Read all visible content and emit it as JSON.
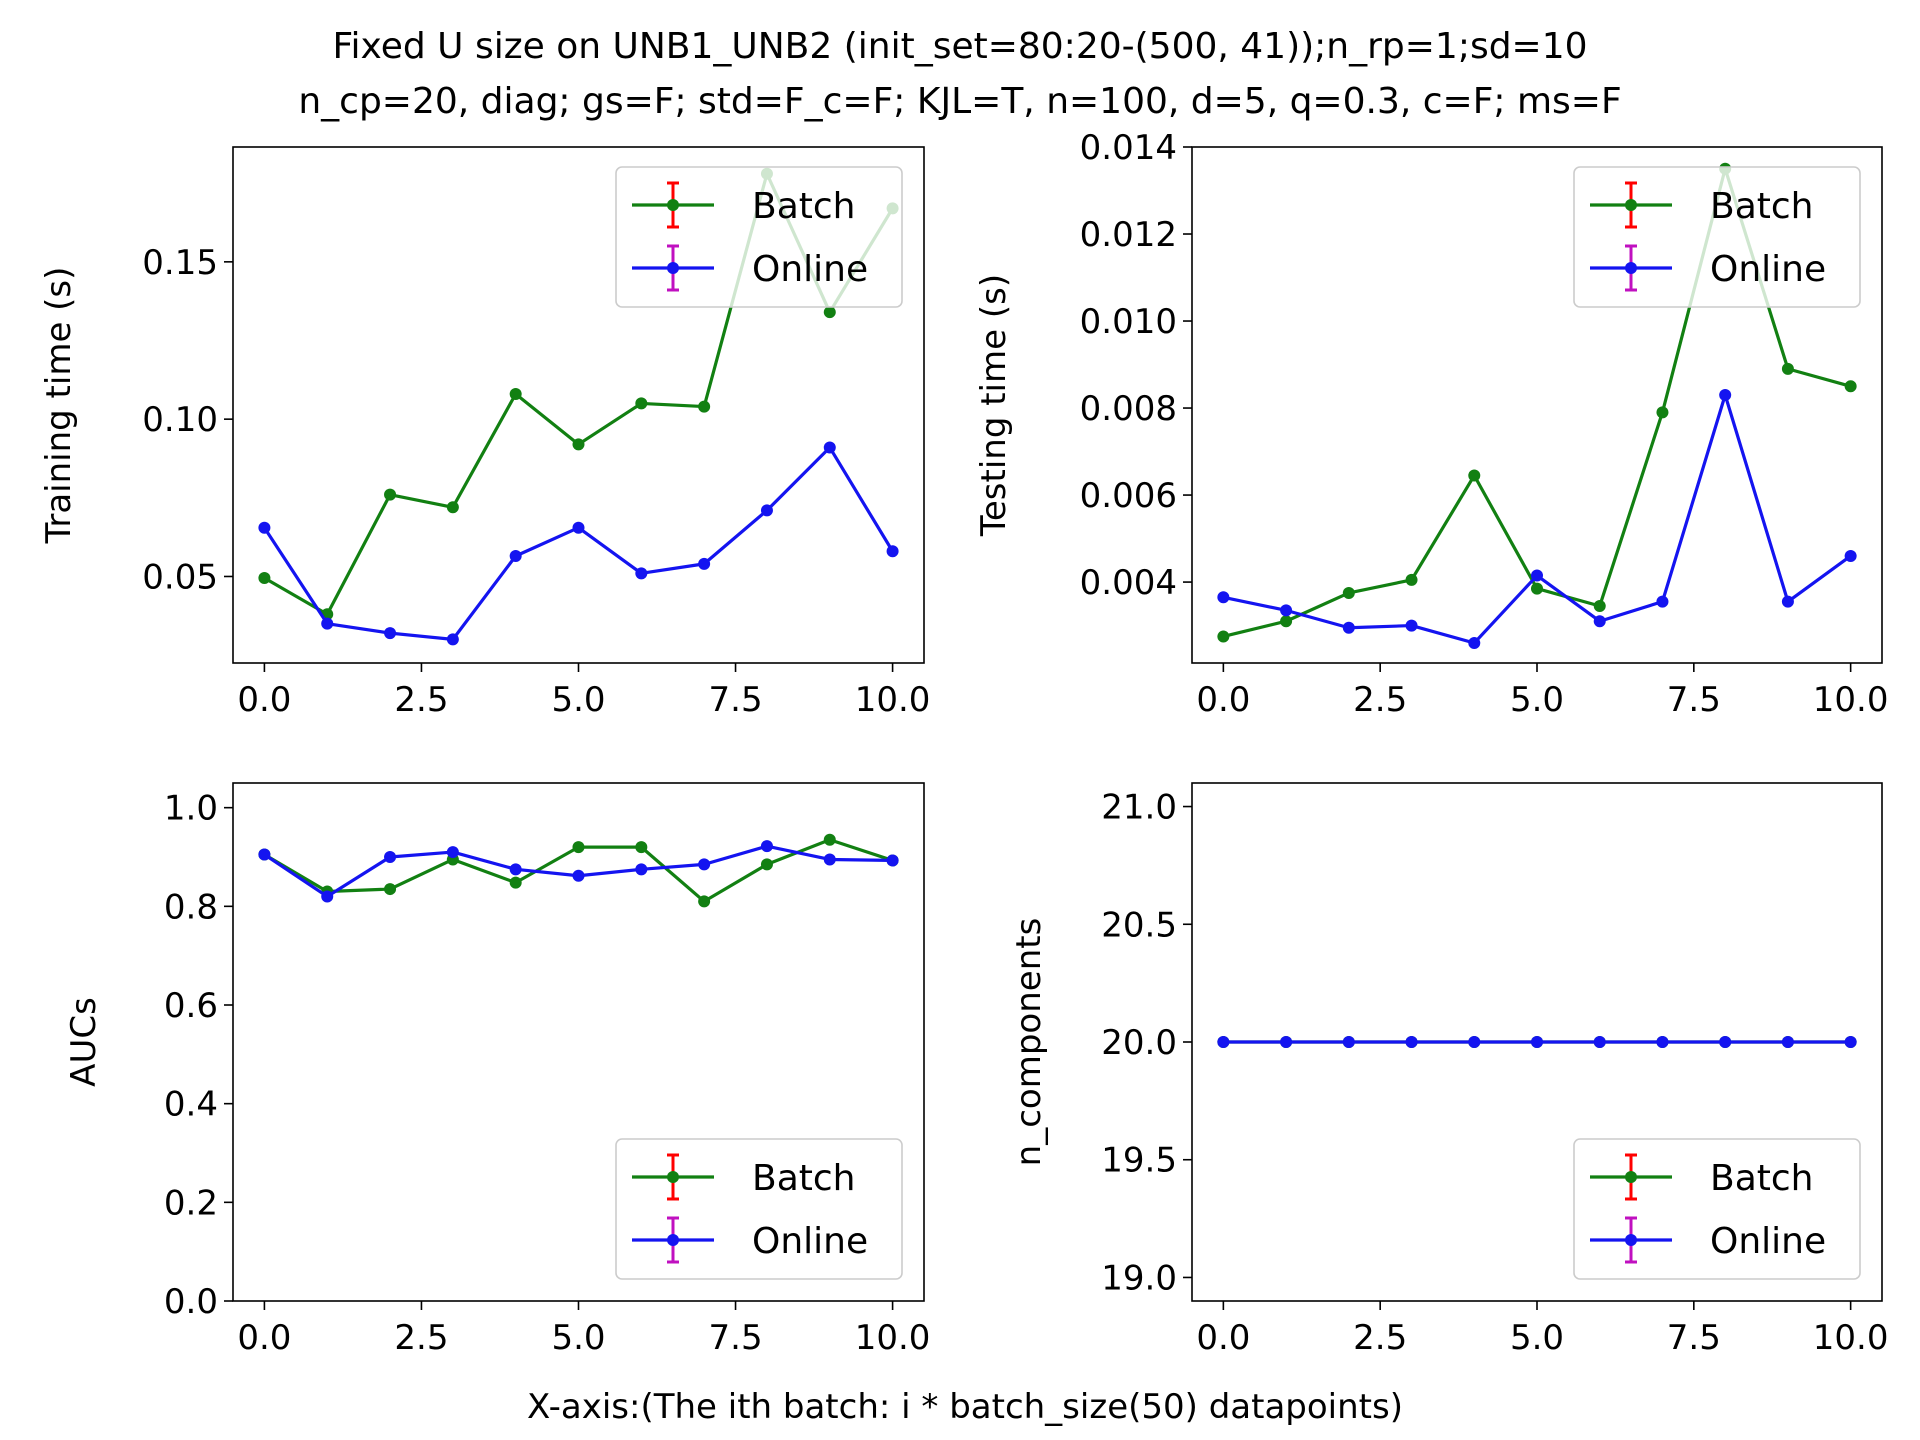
{
  "figure": {
    "title_lines": [
      "Fixed U size on UNB1_UNB2 (init_set=80:20-(500, 41));n_rp=1;sd=10",
      "n_cp=20, diag; gs=F; std=F_c=F; KJL=T, n=100, d=5, q=0.3, c=F; ms=F"
    ],
    "xlabel": "X-axis:(The ith batch: i * batch_size(50) datapoints)"
  },
  "colors": {
    "batch_line": "#128012",
    "online_line": "#1414f0",
    "batch_errorbar": "#ff0000",
    "online_errorbar": "#c010c0"
  },
  "chart_data": [
    {
      "type": "line",
      "ylabel": "Training time (s)",
      "xlim": [
        -0.5,
        10.5
      ],
      "ylim": [
        0.0225,
        0.1865
      ],
      "xticks": [
        0,
        2.5,
        5,
        7.5,
        10
      ],
      "xtick_labels": [
        "0.0",
        "2.5",
        "5.0",
        "7.5",
        "10.0"
      ],
      "yticks": [
        0.05,
        0.1,
        0.15
      ],
      "ytick_labels": [
        "0.05",
        "0.10",
        "0.15"
      ],
      "legend_location": "upper right",
      "x": [
        0,
        1,
        2,
        3,
        4,
        5,
        6,
        7,
        8,
        9,
        10
      ],
      "series": [
        {
          "name": "Batch",
          "values": [
            0.0495,
            0.038,
            0.076,
            0.072,
            0.108,
            0.092,
            0.105,
            0.104,
            0.178,
            0.134,
            0.167
          ]
        },
        {
          "name": "Online",
          "values": [
            0.0655,
            0.035,
            0.032,
            0.03,
            0.0565,
            0.0655,
            0.051,
            0.054,
            0.071,
            0.091,
            0.058
          ]
        }
      ]
    },
    {
      "type": "line",
      "ylabel": "Testing time (s)",
      "xlim": [
        -0.5,
        10.5
      ],
      "ylim": [
        0.00214,
        0.014
      ],
      "xticks": [
        0,
        2.5,
        5,
        7.5,
        10
      ],
      "xtick_labels": [
        "0.0",
        "2.5",
        "5.0",
        "7.5",
        "10.0"
      ],
      "yticks": [
        0.004,
        0.006,
        0.008,
        0.01,
        0.012,
        0.014
      ],
      "ytick_labels": [
        "0.004",
        "0.006",
        "0.008",
        "0.010",
        "0.012",
        "0.014"
      ],
      "legend_location": "upper right",
      "x": [
        0,
        1,
        2,
        3,
        4,
        5,
        6,
        7,
        8,
        9,
        10
      ],
      "series": [
        {
          "name": "Batch",
          "values": [
            0.00275,
            0.0031,
            0.00375,
            0.00405,
            0.00645,
            0.00385,
            0.00345,
            0.0079,
            0.0135,
            0.0089,
            0.0085
          ]
        },
        {
          "name": "Online",
          "values": [
            0.00365,
            0.00335,
            0.00295,
            0.003,
            0.0026,
            0.00415,
            0.0031,
            0.00355,
            0.0083,
            0.00355,
            0.0046
          ]
        }
      ]
    },
    {
      "type": "line",
      "ylabel": "AUCs",
      "xlim": [
        -0.5,
        10.5
      ],
      "ylim": [
        0.0,
        1.05
      ],
      "xticks": [
        0,
        2.5,
        5,
        7.5,
        10
      ],
      "xtick_labels": [
        "0.0",
        "2.5",
        "5.0",
        "7.5",
        "10.0"
      ],
      "yticks": [
        0.0,
        0.2,
        0.4,
        0.6,
        0.8,
        1.0
      ],
      "ytick_labels": [
        "0.0",
        "0.2",
        "0.4",
        "0.6",
        "0.8",
        "1.0"
      ],
      "legend_location": "lower right",
      "x": [
        0,
        1,
        2,
        3,
        4,
        5,
        6,
        7,
        8,
        9,
        10
      ],
      "series": [
        {
          "name": "Batch",
          "values": [
            0.905,
            0.83,
            0.835,
            0.895,
            0.848,
            0.92,
            0.92,
            0.81,
            0.885,
            0.935,
            0.893
          ]
        },
        {
          "name": "Online",
          "values": [
            0.905,
            0.82,
            0.9,
            0.91,
            0.875,
            0.862,
            0.875,
            0.885,
            0.922,
            0.895,
            0.893
          ]
        }
      ]
    },
    {
      "type": "line",
      "ylabel": "n_components",
      "xlim": [
        -0.5,
        10.5
      ],
      "ylim": [
        18.9,
        21.1
      ],
      "xticks": [
        0,
        2.5,
        5,
        7.5,
        10
      ],
      "xtick_labels": [
        "0.0",
        "2.5",
        "5.0",
        "7.5",
        "10.0"
      ],
      "yticks": [
        19.0,
        19.5,
        20.0,
        20.5,
        21.0
      ],
      "ytick_labels": [
        "19.0",
        "19.5",
        "20.0",
        "20.5",
        "21.0"
      ],
      "legend_location": "lower right",
      "x": [
        0,
        1,
        2,
        3,
        4,
        5,
        6,
        7,
        8,
        9,
        10
      ],
      "series": [
        {
          "name": "Batch",
          "values": [
            20,
            20,
            20,
            20,
            20,
            20,
            20,
            20,
            20,
            20,
            20
          ]
        },
        {
          "name": "Online",
          "values": [
            20,
            20,
            20,
            20,
            20,
            20,
            20,
            20,
            20,
            20,
            20
          ]
        }
      ]
    }
  ]
}
